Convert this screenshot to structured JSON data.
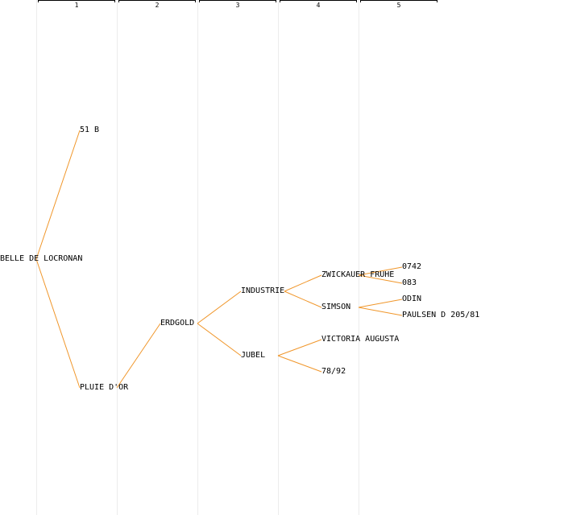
{
  "generations": [
    "1",
    "2",
    "3",
    "4",
    "5"
  ],
  "colors": {
    "edge": "#f0962a",
    "grid": "#ececec",
    "text": "#000000"
  },
  "nodes": {
    "root": "BELLE DE LOCRONAN",
    "p1": "51 B",
    "p2": "PLUIE D'OR",
    "g2": "ERDGOLD",
    "g3a": "INDUSTRIE",
    "g3b": "JUBEL",
    "g4a": "ZWICKAUER FRUHE",
    "g4b": "SIMSON",
    "g4c": "VICTORIA AUGUSTA",
    "g4d": "78/92",
    "g5a": "0742",
    "g5b": "083",
    "g5c": "ODIN",
    "g5d": "PAULSEN D 205/81"
  },
  "edges": [
    [
      "root",
      "p1"
    ],
    [
      "root",
      "p2"
    ],
    [
      "p2",
      "g2"
    ],
    [
      "g2",
      "g3a"
    ],
    [
      "g2",
      "g3b"
    ],
    [
      "g3a",
      "g4a"
    ],
    [
      "g3a",
      "g4b"
    ],
    [
      "g3b",
      "g4c"
    ],
    [
      "g3b",
      "g4d"
    ],
    [
      "g4a",
      "g5a"
    ],
    [
      "g4a",
      "g5b"
    ],
    [
      "g4b",
      "g5c"
    ],
    [
      "g4b",
      "g5d"
    ]
  ]
}
